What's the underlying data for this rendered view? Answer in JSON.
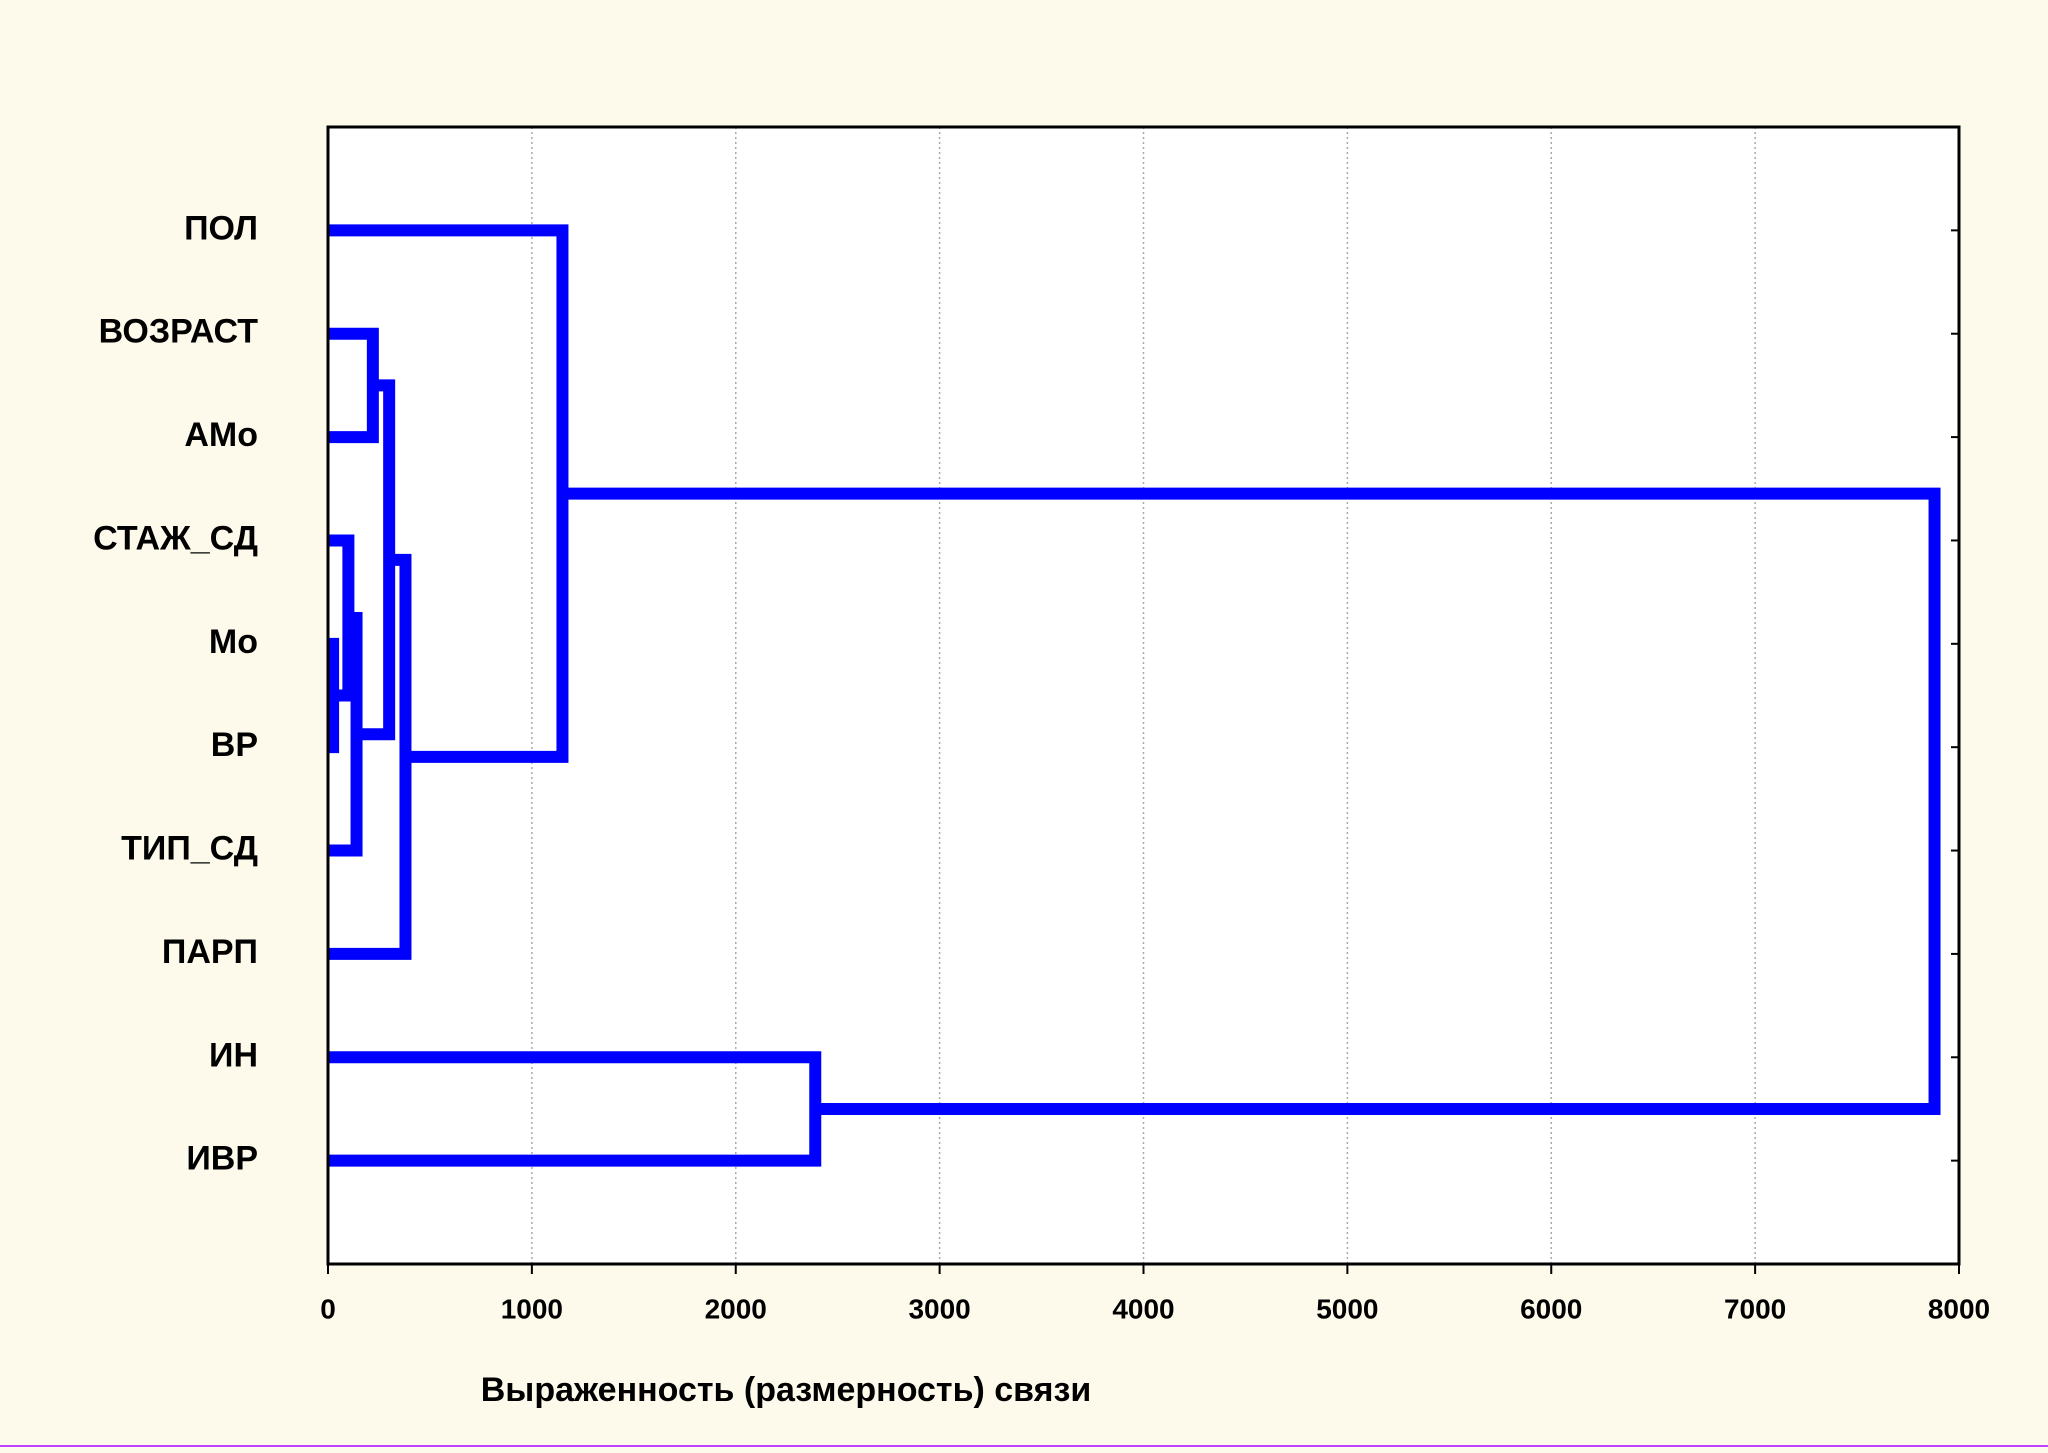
{
  "chart_data": {
    "type": "dendrogram",
    "orientation": "horizontal",
    "color": "#0000ff",
    "xlabel": "Выраженность (размерность) связи",
    "leaves": [
      "ПОЛ",
      "ВОЗРАСТ",
      "АМо",
      "СТАЖ_СД",
      "Мо",
      "ВР",
      "ТИП_СД",
      "ПАРП",
      "ИН",
      "ИВР"
    ],
    "merges": [
      {
        "children": [
          4,
          5
        ],
        "height": 25
      },
      {
        "children": [
          3,
          10
        ],
        "height": 100
      },
      {
        "children": [
          11,
          6
        ],
        "height": 140
      },
      {
        "children": [
          1,
          2
        ],
        "height": 220
      },
      {
        "children": [
          13,
          12
        ],
        "height": 300
      },
      {
        "children": [
          14,
          7
        ],
        "height": 380
      },
      {
        "children": [
          0,
          15
        ],
        "height": 1150
      },
      {
        "children": [
          8,
          9
        ],
        "height": 2390
      },
      {
        "children": [
          16,
          17
        ],
        "height": 7880
      }
    ],
    "xlim": [
      0,
      8000
    ],
    "xticks": [
      0,
      1000,
      2000,
      3000,
      4000,
      5000,
      6000,
      7000,
      8000
    ],
    "grid": true
  }
}
